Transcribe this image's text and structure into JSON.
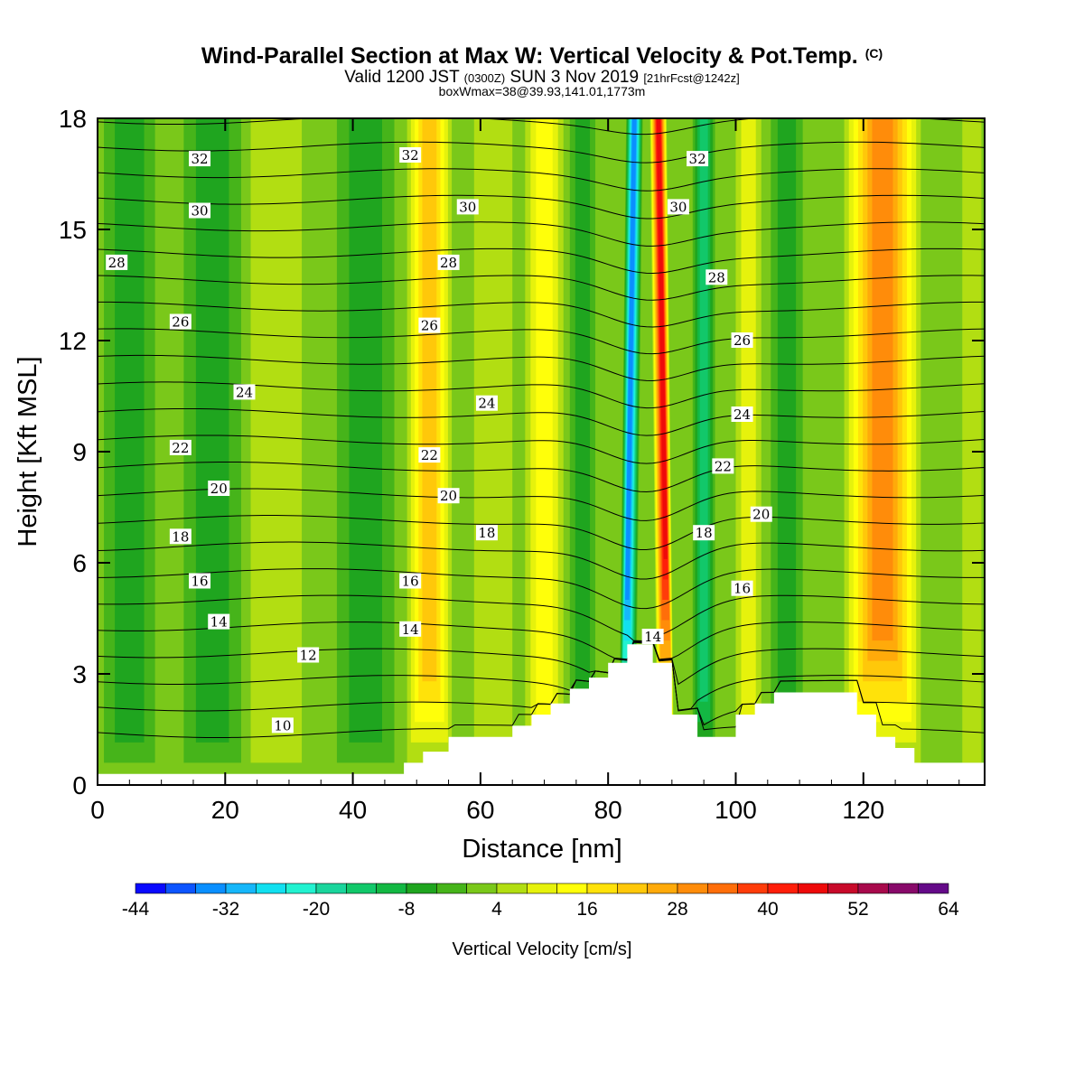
{
  "chart_data": {
    "type": "heatmap",
    "title": "Wind-Parallel Section at Max W: Vertical Velocity & Pot.Temp.",
    "title_mark": "(C)",
    "subtitle": {
      "part1": "Valid 1200 JST ",
      "part2": "(0300Z)",
      "part3": " SUN 3 Nov 2019 ",
      "part4": "[21hrFcst@1242z]"
    },
    "subtitle2": "boxWmax=38@39.93,141.01,1773m",
    "xlabel": "Distance [nm]",
    "ylabel": "Height [Kft MSL]",
    "xlim": [
      0,
      139
    ],
    "ylim": [
      0,
      18
    ],
    "x_ticks": [
      "0",
      "20",
      "40",
      "60",
      "80",
      "100",
      "120"
    ],
    "y_ticks": [
      "0",
      "3",
      "6",
      "9",
      "12",
      "15",
      "18"
    ],
    "colorbar": {
      "label": "Vertical Velocity [cm/s]",
      "tick_labels": [
        "-44",
        "-32",
        "-20",
        "-8",
        "4",
        "16",
        "28",
        "40",
        "52",
        "64"
      ],
      "levels": [
        -44,
        -40,
        -36,
        -32,
        -28,
        -24,
        -20,
        -16,
        -12,
        -8,
        -4,
        0,
        4,
        8,
        12,
        16,
        20,
        24,
        28,
        32,
        36,
        40,
        44,
        48,
        52,
        56,
        60,
        64
      ],
      "colors": [
        "#0a0aff",
        "#0d55ff",
        "#0a8fff",
        "#16b7fa",
        "#12e0f0",
        "#22f2d0",
        "#1ad59c",
        "#12c86a",
        "#13b843",
        "#1fa51f",
        "#46b41a",
        "#7ac81a",
        "#b2de12",
        "#e6f20c",
        "#ffff0a",
        "#ffe20a",
        "#ffc80a",
        "#ffaa0a",
        "#ff8c0a",
        "#ff6e0a",
        "#ff3c0a",
        "#ff1e0a",
        "#ee0a0a",
        "#c80a2a",
        "#a80a4c",
        "#880a6a",
        "#640a88"
      ]
    },
    "terrain_profile": {
      "x_nm": [
        0,
        48,
        48,
        51,
        51,
        55,
        55,
        65,
        65,
        68,
        68,
        71,
        71,
        74,
        74,
        77,
        77,
        80,
        80,
        83,
        83,
        87,
        87,
        90,
        90,
        94,
        94,
        100,
        100,
        103,
        103,
        106,
        106,
        109,
        109,
        119,
        119,
        122,
        122,
        125,
        125,
        128,
        128,
        131,
        131,
        139
      ],
      "height_kft": [
        0.3,
        0.3,
        0.6,
        0.6,
        0.9,
        0.9,
        1.3,
        1.3,
        1.6,
        1.6,
        1.9,
        1.9,
        2.2,
        2.2,
        2.6,
        2.6,
        2.9,
        2.9,
        3.3,
        3.3,
        3.8,
        3.8,
        3.3,
        3.3,
        1.9,
        1.9,
        1.3,
        1.3,
        1.9,
        1.9,
        2.2,
        2.2,
        2.5,
        2.5,
        2.5,
        2.5,
        1.9,
        1.9,
        1.3,
        1.3,
        1.0,
        1.0,
        0.6,
        0.6,
        0.6,
        0.6
      ]
    },
    "vertical_velocity_bands": [
      {
        "x_nm": 5,
        "width_nm": 8,
        "value": -6
      },
      {
        "x_nm": 18,
        "width_nm": 9,
        "value": -8
      },
      {
        "x_nm": 28,
        "width_nm": 8,
        "value": 4
      },
      {
        "x_nm": 42,
        "width_nm": 9,
        "value": -8
      },
      {
        "x_nm": 52,
        "width_nm": 7,
        "value": 20
      },
      {
        "x_nm": 62,
        "width_nm": 6,
        "value": 0
      },
      {
        "x_nm": 70,
        "width_nm": 6,
        "value": 12
      },
      {
        "x_nm": 76,
        "width_nm": 4,
        "value": -8
      },
      {
        "x_nm": 83,
        "width_nm": 2.6,
        "value": -36
      },
      {
        "x_nm": 89,
        "width_nm": 2.6,
        "value": 44
      },
      {
        "x_nm": 95,
        "width_nm": 3.5,
        "value": -16
      },
      {
        "x_nm": 102,
        "width_nm": 4,
        "value": 8
      },
      {
        "x_nm": 108,
        "width_nm": 5,
        "value": -6
      },
      {
        "x_nm": 123,
        "width_nm": 12,
        "value": 28
      },
      {
        "x_nm": 137,
        "width_nm": 3,
        "value": 4
      }
    ],
    "isentrope_labels": [
      {
        "text": "32",
        "x": 16,
        "y": 16.9
      },
      {
        "text": "32",
        "x": 49,
        "y": 17.0
      },
      {
        "text": "32",
        "x": 94,
        "y": 16.9
      },
      {
        "text": "30",
        "x": 16,
        "y": 15.5
      },
      {
        "text": "30",
        "x": 58,
        "y": 15.6
      },
      {
        "text": "30",
        "x": 91,
        "y": 15.6
      },
      {
        "text": "28",
        "x": 3,
        "y": 14.1
      },
      {
        "text": "28",
        "x": 55,
        "y": 14.1
      },
      {
        "text": "28",
        "x": 97,
        "y": 13.7
      },
      {
        "text": "26",
        "x": 13,
        "y": 12.5
      },
      {
        "text": "26",
        "x": 52,
        "y": 12.4
      },
      {
        "text": "26",
        "x": 101,
        "y": 12.0
      },
      {
        "text": "24",
        "x": 23,
        "y": 10.6
      },
      {
        "text": "24",
        "x": 61,
        "y": 10.3
      },
      {
        "text": "24",
        "x": 101,
        "y": 10.0
      },
      {
        "text": "22",
        "x": 13,
        "y": 9.1
      },
      {
        "text": "22",
        "x": 52,
        "y": 8.9
      },
      {
        "text": "22",
        "x": 98,
        "y": 8.6
      },
      {
        "text": "20",
        "x": 19,
        "y": 8.0
      },
      {
        "text": "20",
        "x": 55,
        "y": 7.8
      },
      {
        "text": "20",
        "x": 104,
        "y": 7.3
      },
      {
        "text": "18",
        "x": 13,
        "y": 6.7
      },
      {
        "text": "18",
        "x": 61,
        "y": 6.8
      },
      {
        "text": "18",
        "x": 95,
        "y": 6.8
      },
      {
        "text": "16",
        "x": 16,
        "y": 5.5
      },
      {
        "text": "16",
        "x": 49,
        "y": 5.5
      },
      {
        "text": "16",
        "x": 101,
        "y": 5.3
      },
      {
        "text": "14",
        "x": 19,
        "y": 4.4
      },
      {
        "text": "14",
        "x": 49,
        "y": 4.2
      },
      {
        "text": "14",
        "x": 87,
        "y": 4.0
      },
      {
        "text": "12",
        "x": 33,
        "y": 3.5
      },
      {
        "text": "10",
        "x": 29,
        "y": 1.6
      }
    ]
  }
}
